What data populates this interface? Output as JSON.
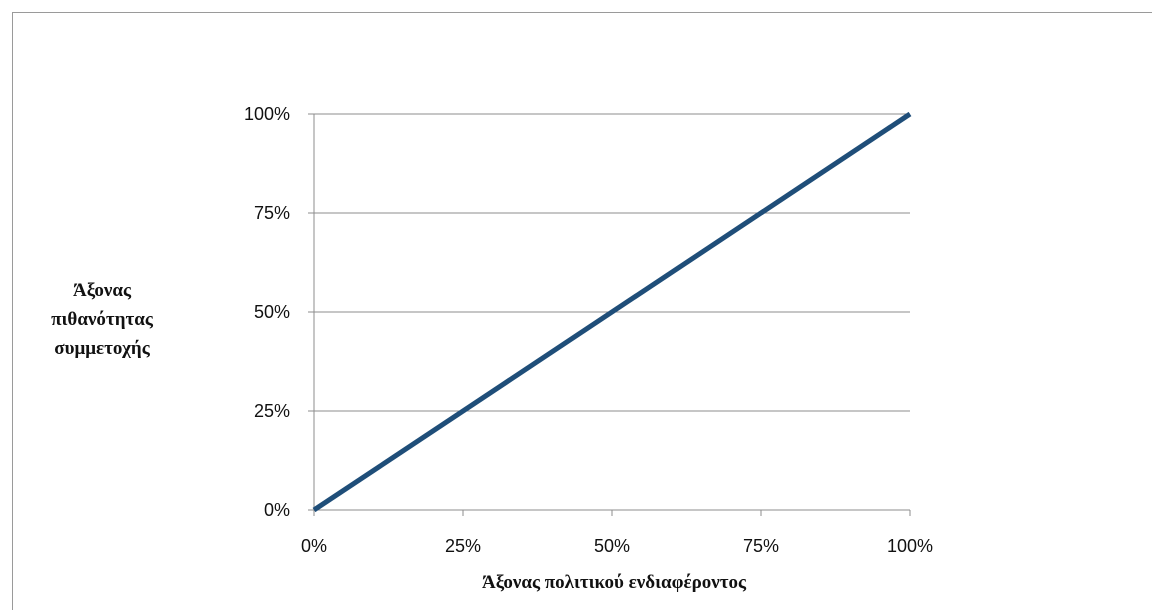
{
  "chart_data": {
    "type": "line",
    "title": "",
    "xlabel": "Άξονας πολιτικού ενδιαφέροντος",
    "ylabel_lines": [
      "Άξονας",
      "πιθανότητας",
      "συμμετοχής"
    ],
    "x_ticks": [
      "0%",
      "25%",
      "50%",
      "75%",
      "100%"
    ],
    "y_ticks": [
      "0%",
      "25%",
      "50%",
      "75%",
      "100%"
    ],
    "xlim": [
      0,
      100
    ],
    "ylim": [
      0,
      100
    ],
    "grid": true,
    "legend": "none",
    "series": [
      {
        "color": "#1f4e79",
        "x": [
          0,
          100
        ],
        "y": [
          0,
          100
        ]
      }
    ]
  }
}
